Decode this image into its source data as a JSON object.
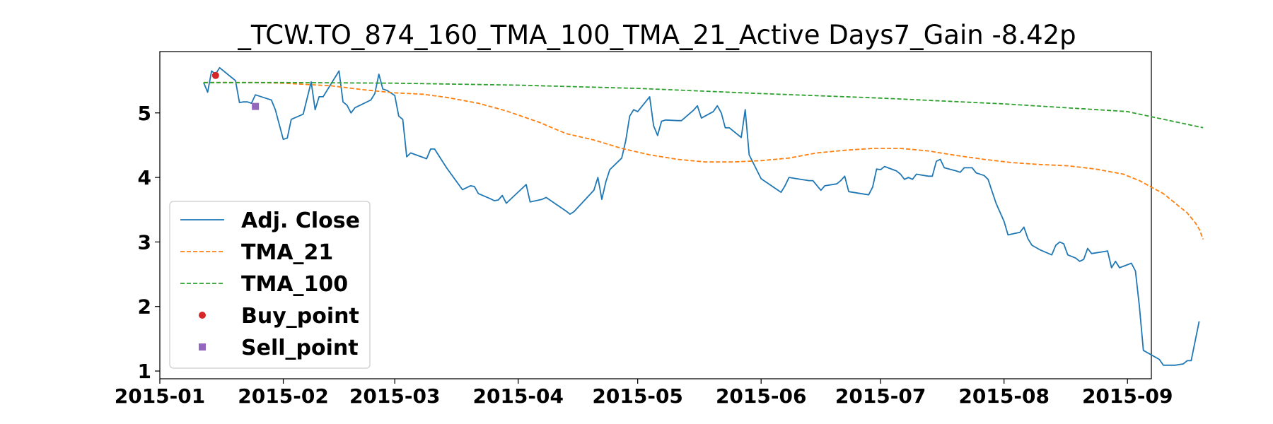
{
  "chart_data": {
    "type": "line",
    "title": "_TCW.TO_874_160_TMA_100_TMA_21_Active Days7_Gain  -8.42p",
    "xlabel": "",
    "ylabel": "",
    "x_axis": "date",
    "xlim": [
      "2015-01-01",
      "2015-09-07"
    ],
    "ylim": [
      0.88,
      5.95
    ],
    "x_ticks": [
      "2015-01-01",
      "2015-02-01",
      "2015-03-01",
      "2015-04-01",
      "2015-05-01",
      "2015-06-01",
      "2015-07-01",
      "2015-08-01",
      "2015-09-01"
    ],
    "x_tick_labels": [
      "2015-01",
      "2015-02",
      "2015-03",
      "2015-04",
      "2015-05",
      "2015-06",
      "2015-07",
      "2015-08",
      "2015-09"
    ],
    "y_ticks": [
      1,
      2,
      3,
      4,
      5
    ],
    "y_tick_labels": [
      "1",
      "2",
      "3",
      "4",
      "5"
    ],
    "grid": false,
    "legend_position": "lower-left",
    "series": [
      {
        "name": "Adj. Close",
        "style": "solid",
        "color": "#1f77b4",
        "points": [
          [
            "2015-01-12",
            5.47
          ],
          [
            "2015-01-13",
            5.32
          ],
          [
            "2015-01-14",
            5.65
          ],
          [
            "2015-01-15",
            5.6
          ],
          [
            "2015-01-16",
            5.7
          ],
          [
            "2015-01-19",
            5.55
          ],
          [
            "2015-01-20",
            5.5
          ],
          [
            "2015-01-21",
            5.16
          ],
          [
            "2015-01-22",
            5.17
          ],
          [
            "2015-01-23",
            5.17
          ],
          [
            "2015-01-24",
            5.15
          ],
          [
            "2015-01-25",
            5.28
          ],
          [
            "2015-01-28",
            5.22
          ],
          [
            "2015-01-29",
            5.2
          ],
          [
            "2015-01-30",
            5.05
          ],
          [
            "2015-02-01",
            4.59
          ],
          [
            "2015-02-02",
            4.61
          ],
          [
            "2015-02-03",
            4.9
          ],
          [
            "2015-02-06",
            4.98
          ],
          [
            "2015-02-08",
            5.48
          ],
          [
            "2015-02-09",
            5.05
          ],
          [
            "2015-02-10",
            5.25
          ],
          [
            "2015-02-11",
            5.25
          ],
          [
            "2015-02-12",
            5.35
          ],
          [
            "2015-02-15",
            5.65
          ],
          [
            "2015-02-16",
            5.17
          ],
          [
            "2015-02-17",
            5.12
          ],
          [
            "2015-02-18",
            5.0
          ],
          [
            "2015-02-19",
            5.08
          ],
          [
            "2015-02-23",
            5.2
          ],
          [
            "2015-02-24",
            5.3
          ],
          [
            "2015-02-25",
            5.6
          ],
          [
            "2015-02-26",
            5.37
          ],
          [
            "2015-02-27",
            5.35
          ],
          [
            "2015-03-01",
            5.27
          ],
          [
            "2015-03-02",
            4.95
          ],
          [
            "2015-03-03",
            4.9
          ],
          [
            "2015-03-04",
            4.32
          ],
          [
            "2015-03-05",
            4.38
          ],
          [
            "2015-03-09",
            4.29
          ],
          [
            "2015-03-10",
            4.44
          ],
          [
            "2015-03-11",
            4.44
          ],
          [
            "2015-03-14",
            4.15
          ],
          [
            "2015-03-18",
            3.81
          ],
          [
            "2015-03-20",
            3.87
          ],
          [
            "2015-03-21",
            3.86
          ],
          [
            "2015-03-22",
            3.75
          ],
          [
            "2015-03-25",
            3.67
          ],
          [
            "2015-03-26",
            3.64
          ],
          [
            "2015-03-27",
            3.65
          ],
          [
            "2015-03-28",
            3.72
          ],
          [
            "2015-03-29",
            3.6
          ],
          [
            "2015-04-03",
            3.89
          ],
          [
            "2015-04-04",
            3.62
          ],
          [
            "2015-04-07",
            3.66
          ],
          [
            "2015-04-08",
            3.69
          ],
          [
            "2015-04-13",
            3.48
          ],
          [
            "2015-04-14",
            3.43
          ],
          [
            "2015-04-15",
            3.47
          ],
          [
            "2015-04-20",
            3.8
          ],
          [
            "2015-04-21",
            4.0
          ],
          [
            "2015-04-22",
            3.66
          ],
          [
            "2015-04-23",
            3.93
          ],
          [
            "2015-04-24",
            4.12
          ],
          [
            "2015-04-27",
            4.3
          ],
          [
            "2015-04-28",
            4.57
          ],
          [
            "2015-04-29",
            4.95
          ],
          [
            "2015-04-30",
            5.05
          ],
          [
            "2015-05-01",
            5.02
          ],
          [
            "2015-05-04",
            5.25
          ],
          [
            "2015-05-05",
            4.8
          ],
          [
            "2015-05-06",
            4.65
          ],
          [
            "2015-05-07",
            4.87
          ],
          [
            "2015-05-08",
            4.89
          ],
          [
            "2015-05-11",
            4.88
          ],
          [
            "2015-05-12",
            4.88
          ],
          [
            "2015-05-15",
            5.04
          ],
          [
            "2015-05-16",
            5.11
          ],
          [
            "2015-05-17",
            4.92
          ],
          [
            "2015-05-20",
            5.02
          ],
          [
            "2015-05-21",
            5.11
          ],
          [
            "2015-05-22",
            5.0
          ],
          [
            "2015-05-23",
            4.77
          ],
          [
            "2015-05-24",
            4.77
          ],
          [
            "2015-05-27",
            4.62
          ],
          [
            "2015-05-28",
            5.05
          ],
          [
            "2015-05-29",
            4.35
          ],
          [
            "2015-06-01",
            3.98
          ],
          [
            "2015-06-06",
            3.77
          ],
          [
            "2015-06-07",
            3.87
          ],
          [
            "2015-06-08",
            4.0
          ],
          [
            "2015-06-13",
            3.95
          ],
          [
            "2015-06-14",
            3.95
          ],
          [
            "2015-06-16",
            3.8
          ],
          [
            "2015-06-17",
            3.87
          ],
          [
            "2015-06-20",
            3.9
          ],
          [
            "2015-06-21",
            3.95
          ],
          [
            "2015-06-22",
            4.02
          ],
          [
            "2015-06-23",
            3.78
          ],
          [
            "2015-06-28",
            3.73
          ],
          [
            "2015-06-29",
            3.85
          ],
          [
            "2015-06-30",
            4.13
          ],
          [
            "2015-07-01",
            4.12
          ],
          [
            "2015-07-02",
            4.17
          ],
          [
            "2015-07-05",
            4.1
          ],
          [
            "2015-07-06",
            4.05
          ],
          [
            "2015-07-07",
            3.97
          ],
          [
            "2015-07-08",
            4.0
          ],
          [
            "2015-07-09",
            3.97
          ],
          [
            "2015-07-10",
            4.05
          ],
          [
            "2015-07-13",
            4.02
          ],
          [
            "2015-07-14",
            4.02
          ],
          [
            "2015-07-15",
            4.25
          ],
          [
            "2015-07-16",
            4.28
          ],
          [
            "2015-07-17",
            4.15
          ],
          [
            "2015-07-20",
            4.1
          ],
          [
            "2015-07-21",
            4.08
          ],
          [
            "2015-07-22",
            4.15
          ],
          [
            "2015-07-23",
            4.15
          ],
          [
            "2015-07-24",
            4.15
          ],
          [
            "2015-07-25",
            4.07
          ],
          [
            "2015-07-27",
            4.03
          ],
          [
            "2015-07-28",
            3.97
          ],
          [
            "2015-07-30",
            3.6
          ],
          [
            "2015-08-01",
            3.32
          ],
          [
            "2015-08-02",
            3.11
          ],
          [
            "2015-08-05",
            3.15
          ],
          [
            "2015-08-06",
            3.23
          ],
          [
            "2015-08-07",
            3.05
          ],
          [
            "2015-08-08",
            2.95
          ],
          [
            "2015-08-10",
            2.88
          ],
          [
            "2015-08-13",
            2.8
          ],
          [
            "2015-08-14",
            2.95
          ],
          [
            "2015-08-15",
            3.0
          ],
          [
            "2015-08-16",
            2.97
          ],
          [
            "2015-08-17",
            2.8
          ],
          [
            "2015-08-19",
            2.75
          ],
          [
            "2015-08-20",
            2.7
          ],
          [
            "2015-08-21",
            2.73
          ],
          [
            "2015-08-22",
            2.9
          ],
          [
            "2015-08-23",
            2.82
          ],
          [
            "2015-08-26",
            2.85
          ],
          [
            "2015-08-27",
            2.86
          ],
          [
            "2015-08-28",
            2.6
          ],
          [
            "2015-08-29",
            2.7
          ],
          [
            "2015-08-30",
            2.6
          ],
          [
            "2015-09-02",
            2.67
          ],
          [
            "2015-09-03",
            2.55
          ],
          [
            "2015-09-04",
            2.0
          ],
          [
            "2015-09-05",
            1.32
          ],
          [
            "2015-09-09",
            1.18
          ],
          [
            "2015-09-10",
            1.09
          ],
          [
            "2015-09-13",
            1.09
          ],
          [
            "2015-09-14",
            1.1
          ],
          [
            "2015-09-15",
            1.11
          ],
          [
            "2015-09-16",
            1.16
          ],
          [
            "2015-09-17",
            1.16
          ],
          [
            "2015-09-19",
            1.77
          ]
        ]
      },
      {
        "name": "TMA_21",
        "style": "dashed",
        "color": "#ff7f0e",
        "points": [
          [
            "2015-01-12",
            5.47
          ],
          [
            "2015-01-25",
            5.47
          ],
          [
            "2015-02-01",
            5.46
          ],
          [
            "2015-02-13",
            5.42
          ],
          [
            "2015-02-21",
            5.36
          ],
          [
            "2015-03-01",
            5.31
          ],
          [
            "2015-03-08",
            5.29
          ],
          [
            "2015-03-14",
            5.24
          ],
          [
            "2015-03-22",
            5.15
          ],
          [
            "2015-03-29",
            5.03
          ],
          [
            "2015-04-06",
            4.86
          ],
          [
            "2015-04-13",
            4.68
          ],
          [
            "2015-04-20",
            4.58
          ],
          [
            "2015-04-27",
            4.45
          ],
          [
            "2015-05-04",
            4.35
          ],
          [
            "2015-05-11",
            4.28
          ],
          [
            "2015-05-18",
            4.24
          ],
          [
            "2015-05-25",
            4.24
          ],
          [
            "2015-06-01",
            4.26
          ],
          [
            "2015-06-08",
            4.3
          ],
          [
            "2015-06-15",
            4.38
          ],
          [
            "2015-06-22",
            4.42
          ],
          [
            "2015-06-29",
            4.45
          ],
          [
            "2015-07-06",
            4.45
          ],
          [
            "2015-07-13",
            4.41
          ],
          [
            "2015-07-20",
            4.34
          ],
          [
            "2015-07-27",
            4.28
          ],
          [
            "2015-08-03",
            4.23
          ],
          [
            "2015-08-10",
            4.2
          ],
          [
            "2015-08-17",
            4.18
          ],
          [
            "2015-08-24",
            4.13
          ],
          [
            "2015-08-31",
            4.05
          ],
          [
            "2015-09-04",
            3.95
          ],
          [
            "2015-09-07",
            3.85
          ],
          [
            "2015-09-10",
            3.75
          ],
          [
            "2015-09-13",
            3.6
          ],
          [
            "2015-09-16",
            3.45
          ],
          [
            "2015-09-18",
            3.3
          ],
          [
            "2015-09-19",
            3.2
          ],
          [
            "2015-09-20",
            3.04
          ]
        ]
      },
      {
        "name": "TMA_100",
        "style": "dashed",
        "color": "#2ca02c",
        "points": [
          [
            "2015-01-12",
            5.47
          ],
          [
            "2015-02-01",
            5.47
          ],
          [
            "2015-03-01",
            5.46
          ],
          [
            "2015-04-01",
            5.43
          ],
          [
            "2015-05-01",
            5.38
          ],
          [
            "2015-06-01",
            5.3
          ],
          [
            "2015-07-01",
            5.23
          ],
          [
            "2015-08-01",
            5.14
          ],
          [
            "2015-09-01",
            5.02
          ],
          [
            "2015-09-20",
            4.77
          ]
        ]
      }
    ],
    "markers": [
      {
        "name": "Buy_point",
        "shape": "circle",
        "color": "#d62728",
        "x": "2015-01-15",
        "y": 5.58
      },
      {
        "name": "Sell_point",
        "shape": "square",
        "color": "#9467bd",
        "x": "2015-01-25",
        "y": 5.1
      }
    ]
  }
}
